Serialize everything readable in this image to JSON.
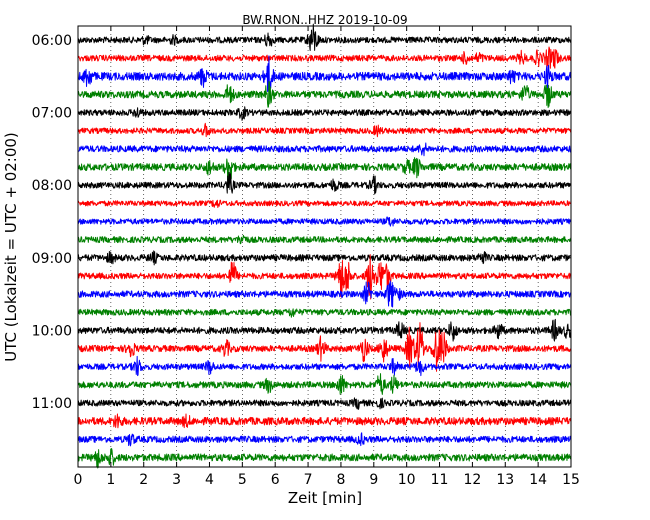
{
  "chart_data": {
    "type": "line",
    "title": "BW.RNON..HHZ 2019-10-09",
    "xlabel": "Zeit  [min]",
    "ylabel": "UTC (Lokalzeit = UTC + 02:00)",
    "xlim": [
      0,
      15
    ],
    "x_ticks": [
      "0",
      "1",
      "2",
      "3",
      "4",
      "5",
      "6",
      "7",
      "8",
      "9",
      "10",
      "11",
      "12",
      "13",
      "14",
      "15"
    ],
    "y_ticks": [
      "06:00",
      "07:00",
      "08:00",
      "09:00",
      "10:00",
      "11:00"
    ],
    "grid": "vertical dotted",
    "row_minutes": 15,
    "colors": [
      "#000000",
      "#ff0000",
      "#0000ff",
      "#008000"
    ],
    "series": [
      {
        "start": "06:00",
        "color": "#000000",
        "noise": 3.0,
        "events": [
          [
            2.05,
            3
          ],
          [
            2.9,
            3
          ],
          [
            5.8,
            7
          ],
          [
            7.1,
            9
          ],
          [
            7.2,
            8
          ]
        ]
      },
      {
        "start": "06:15",
        "color": "#ff0000",
        "noise": 3.0,
        "events": [
          [
            11.8,
            5
          ],
          [
            12.2,
            4
          ],
          [
            13.5,
            5
          ],
          [
            14.0,
            6
          ],
          [
            14.3,
            8
          ],
          [
            14.5,
            9
          ]
        ]
      },
      {
        "start": "06:30",
        "color": "#0000ff",
        "noise": 4.0,
        "events": [
          [
            0.3,
            9
          ],
          [
            3.8,
            8
          ],
          [
            5.8,
            18
          ],
          [
            13.2,
            5
          ],
          [
            14.3,
            9
          ]
        ]
      },
      {
        "start": "06:45",
        "color": "#008000",
        "noise": 3.5,
        "events": [
          [
            4.6,
            9
          ],
          [
            5.8,
            11
          ],
          [
            13.6,
            8
          ],
          [
            14.3,
            11
          ]
        ]
      },
      {
        "start": "07:00",
        "color": "#000000",
        "noise": 3.0,
        "events": [
          [
            1.8,
            4
          ],
          [
            5.0,
            5
          ]
        ]
      },
      {
        "start": "07:15",
        "color": "#ff0000",
        "noise": 2.8,
        "events": [
          [
            3.9,
            5
          ],
          [
            9.1,
            4
          ]
        ]
      },
      {
        "start": "07:30",
        "color": "#0000ff",
        "noise": 3.2,
        "events": [
          [
            10.5,
            5
          ]
        ]
      },
      {
        "start": "07:45",
        "color": "#008000",
        "noise": 3.5,
        "events": [
          [
            4.6,
            14
          ],
          [
            4.0,
            6
          ],
          [
            10.3,
            9
          ],
          [
            10.0,
            5
          ]
        ]
      },
      {
        "start": "08:00",
        "color": "#000000",
        "noise": 3.0,
        "events": [
          [
            4.6,
            10
          ],
          [
            7.8,
            5
          ],
          [
            9.0,
            7
          ]
        ]
      },
      {
        "start": "08:15",
        "color": "#ff0000",
        "noise": 2.6,
        "events": [
          [
            4.2,
            3
          ]
        ]
      },
      {
        "start": "08:30",
        "color": "#0000ff",
        "noise": 2.8,
        "events": [
          [
            9.5,
            4
          ]
        ]
      },
      {
        "start": "08:45",
        "color": "#008000",
        "noise": 3.0,
        "events": [
          [
            5.0,
            4
          ]
        ]
      },
      {
        "start": "09:00",
        "color": "#000000",
        "noise": 3.2,
        "events": [
          [
            1.0,
            4
          ],
          [
            2.3,
            4
          ],
          [
            12.3,
            5
          ]
        ]
      },
      {
        "start": "09:15",
        "color": "#ff0000",
        "noise": 3.0,
        "events": [
          [
            4.7,
            14
          ],
          [
            8.0,
            20
          ],
          [
            8.2,
            14
          ],
          [
            8.9,
            22
          ],
          [
            9.2,
            14
          ],
          [
            9.4,
            10
          ]
        ]
      },
      {
        "start": "09:30",
        "color": "#0000ff",
        "noise": 3.2,
        "events": [
          [
            8.8,
            10
          ],
          [
            9.5,
            13
          ],
          [
            9.7,
            6
          ]
        ]
      },
      {
        "start": "09:45",
        "color": "#008000",
        "noise": 3.0,
        "events": [
          [
            6.5,
            3
          ]
        ]
      },
      {
        "start": "10:00",
        "color": "#000000",
        "noise": 3.2,
        "events": [
          [
            9.8,
            7
          ],
          [
            11.4,
            9
          ],
          [
            12.8,
            7
          ],
          [
            14.5,
            9
          ],
          [
            14.9,
            6
          ]
        ]
      },
      {
        "start": "10:15",
        "color": "#ff0000",
        "noise": 3.2,
        "events": [
          [
            1.6,
            8
          ],
          [
            4.5,
            7
          ],
          [
            7.4,
            10
          ],
          [
            8.7,
            11
          ],
          [
            9.3,
            12
          ],
          [
            10.1,
            20
          ],
          [
            10.4,
            24
          ],
          [
            10.9,
            20
          ],
          [
            11.1,
            16
          ]
        ]
      },
      {
        "start": "10:30",
        "color": "#0000ff",
        "noise": 3.0,
        "events": [
          [
            1.8,
            8
          ],
          [
            4.0,
            6
          ],
          [
            9.6,
            6
          ],
          [
            10.4,
            7
          ]
        ]
      },
      {
        "start": "10:45",
        "color": "#008000",
        "noise": 3.2,
        "events": [
          [
            5.8,
            6
          ],
          [
            8.0,
            9
          ],
          [
            9.2,
            10
          ],
          [
            9.6,
            7
          ]
        ]
      },
      {
        "start": "11:00",
        "color": "#000000",
        "noise": 3.0,
        "events": [
          [
            8.5,
            4
          ],
          [
            9.2,
            3
          ]
        ]
      },
      {
        "start": "11:15",
        "color": "#ff0000",
        "noise": 3.8,
        "events": [
          [
            1.2,
            6
          ],
          [
            3.3,
            4
          ]
        ]
      },
      {
        "start": "11:30",
        "color": "#0000ff",
        "noise": 3.2,
        "events": [
          [
            1.6,
            5
          ],
          [
            8.6,
            4
          ]
        ]
      },
      {
        "start": "11:45",
        "color": "#008000",
        "noise": 3.5,
        "events": [
          [
            0.6,
            8
          ],
          [
            1.0,
            7
          ]
        ]
      }
    ]
  }
}
